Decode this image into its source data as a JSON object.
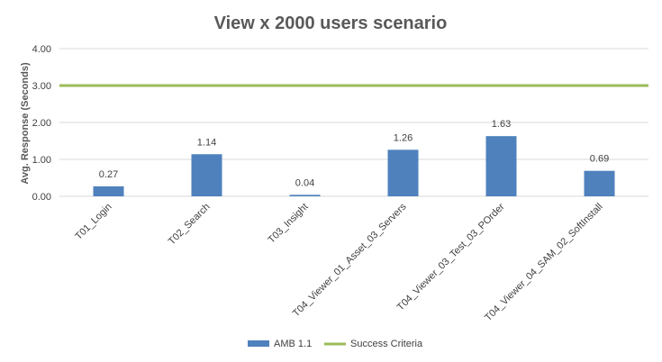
{
  "chart_data": {
    "type": "bar",
    "title": "View  x 2000 users scenario",
    "xlabel": "",
    "ylabel": "Avg. Response (Seconds)",
    "ylim": [
      0,
      4
    ],
    "yticks": [
      "0.00",
      "1.00",
      "2.00",
      "3.00",
      "4.00"
    ],
    "grid": true,
    "legend_position": "bottom",
    "categories": [
      "T01_Login",
      "T02_Search",
      "T03_Insight",
      "T04_Viewer_01_Asset_03_Servers",
      "T04_Viewer_03_Test_03_POrder",
      "T04_Viewer_04_SAM_02_SoftInstall"
    ],
    "series": [
      {
        "name": "AMB 1.1",
        "type": "bar",
        "color": "#4f81bd",
        "values": [
          0.27,
          1.14,
          0.04,
          1.26,
          1.63,
          0.69
        ],
        "labels": [
          "0.27",
          "1.14",
          "0.04",
          "1.26",
          "1.63",
          "0.69"
        ]
      },
      {
        "name": "Success Criteria",
        "type": "line",
        "color": "#9bbb59",
        "value": 3.0
      }
    ]
  }
}
